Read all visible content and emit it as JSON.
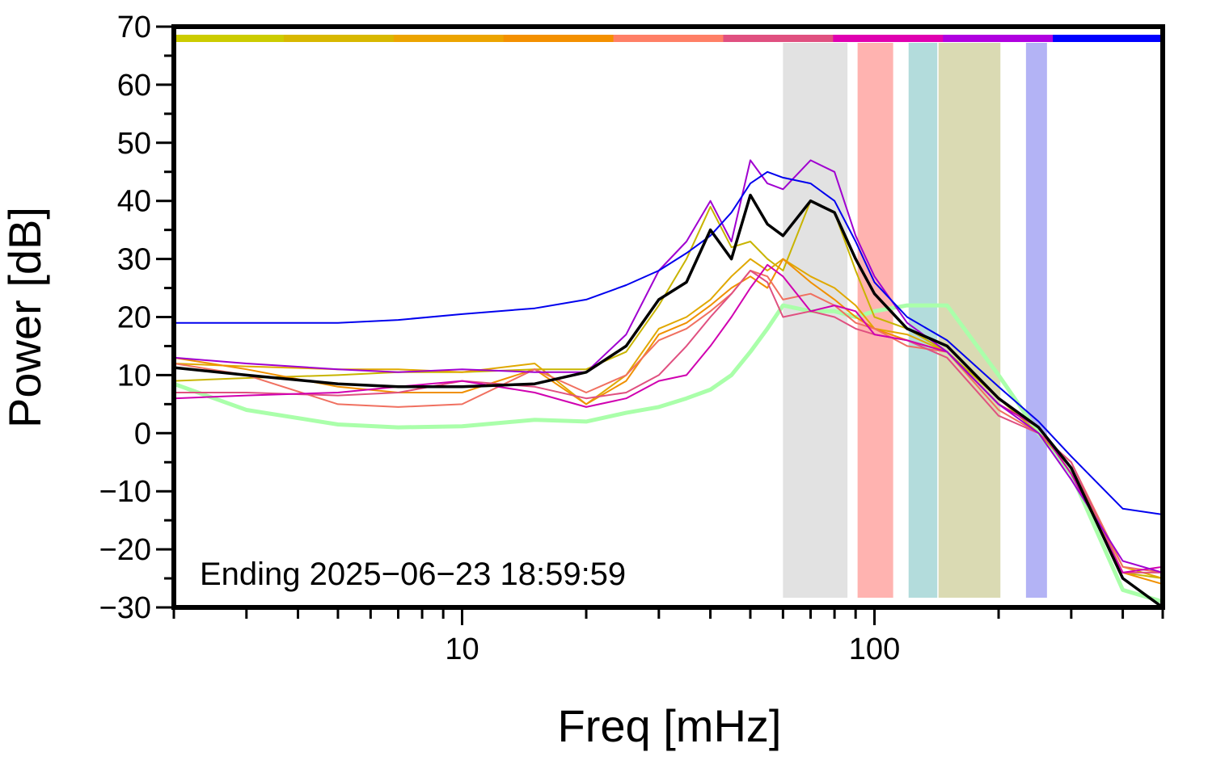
{
  "chart_data": {
    "type": "line",
    "xlabel": "Freq [mHz]",
    "ylabel": "Power [dB]",
    "annotation": "Ending 2025−06−23 18:59:59",
    "xscale": "log",
    "xlim": [
      2,
      500
    ],
    "ylim": [
      -30,
      70
    ],
    "xticks": [
      10,
      100
    ],
    "xticks_minor": [
      2,
      3,
      4,
      5,
      6,
      7,
      8,
      9,
      20,
      30,
      40,
      50,
      60,
      70,
      80,
      90,
      200,
      300,
      400,
      500
    ],
    "yticks": [
      {
        "value": -30,
        "label": "−30"
      },
      {
        "value": -20,
        "label": "−20"
      },
      {
        "value": -10,
        "label": "−10"
      },
      0,
      10,
      20,
      30,
      40,
      50,
      60,
      70
    ],
    "yticks_minor": [
      -25,
      -15,
      -5,
      5,
      15,
      25,
      35,
      45,
      55,
      65
    ],
    "color_strip": [
      "#cccc00",
      "#d8b800",
      "#eca400",
      "#f49000",
      "#ff7f66",
      "#e05080",
      "#e000b0",
      "#b000e0",
      "#0000ff"
    ],
    "bands": [
      {
        "x0": 60,
        "x1": 86,
        "color": "#e2e2e2"
      },
      {
        "x0": 91,
        "x1": 111,
        "color": "#ffb3b0"
      },
      {
        "x0": 121,
        "x1": 142,
        "color": "#b3dcdc"
      },
      {
        "x0": 143,
        "x1": 202,
        "color": "#dadab3"
      },
      {
        "x0": 233,
        "x1": 262,
        "color": "#b3b3f5"
      }
    ],
    "x": [
      2,
      3,
      5,
      7,
      10,
      15,
      20,
      25,
      30,
      35,
      40,
      45,
      50,
      55,
      60,
      70,
      80,
      90,
      100,
      120,
      150,
      200,
      250,
      300,
      400,
      500
    ],
    "series": [
      {
        "color": "#aaffaa",
        "width": 5,
        "values": [
          8.5,
          4,
          1.5,
          1,
          1.2,
          2.3,
          2,
          3.5,
          4.5,
          6,
          7.5,
          10,
          14,
          18,
          22,
          21,
          21,
          20,
          21,
          22,
          22,
          10,
          0,
          -7,
          -27,
          -29
        ]
      },
      {
        "color": "#c8b400",
        "width": 2,
        "values": [
          9,
          9.5,
          10,
          10.5,
          10.5,
          11,
          11,
          14,
          22,
          30,
          39,
          32,
          33,
          30,
          28,
          40,
          38,
          28,
          20,
          18,
          14,
          6,
          0,
          -6,
          -24,
          -25
        ]
      },
      {
        "color": "#e0a800",
        "width": 2,
        "values": [
          12,
          11.5,
          11,
          11,
          10.5,
          12,
          5,
          10,
          18,
          20,
          23,
          27,
          30,
          28,
          30,
          27,
          25,
          22,
          18,
          17,
          14,
          5,
          1,
          -6,
          -23,
          -25
        ]
      },
      {
        "color": "#f09000",
        "width": 2,
        "values": [
          13,
          11,
          8,
          7,
          7,
          11,
          5,
          9,
          17,
          19,
          22,
          25,
          27,
          25,
          30,
          26,
          23,
          20,
          18,
          16,
          14,
          5,
          1,
          -7,
          -24,
          -26
        ]
      },
      {
        "color": "#f07060",
        "width": 2,
        "values": [
          12,
          10,
          5,
          4.5,
          5,
          11,
          7,
          10,
          16,
          18,
          21,
          24,
          28,
          27,
          23,
          24,
          22,
          19,
          18,
          15,
          14,
          4,
          0,
          -5,
          -23,
          -24
        ]
      },
      {
        "color": "#e05080",
        "width": 2,
        "values": [
          7,
          7,
          6.5,
          7,
          9,
          8,
          6,
          7,
          10,
          15,
          20,
          24,
          28,
          26,
          20,
          21,
          20,
          18,
          17,
          16,
          13,
          3,
          0,
          -5,
          -24,
          -24
        ]
      },
      {
        "color": "#d000b0",
        "width": 2,
        "values": [
          6,
          6.5,
          7,
          8,
          9,
          7,
          4.5,
          6,
          9,
          10,
          15,
          20,
          25,
          29,
          27,
          21,
          22,
          21,
          17,
          16,
          14,
          5,
          1,
          -7,
          -24,
          -23
        ]
      },
      {
        "color": "#a000d0",
        "width": 2,
        "values": [
          13,
          12,
          11,
          10.5,
          11,
          10.5,
          10.5,
          17,
          28,
          33,
          40,
          33,
          47,
          43,
          42,
          47,
          45,
          34,
          27,
          19,
          14,
          5,
          0,
          -8,
          -22,
          -24
        ]
      },
      {
        "color": "#0000ee",
        "width": 2,
        "values": [
          19,
          19,
          19,
          19.5,
          20.5,
          21.5,
          23,
          25.5,
          28,
          31,
          34,
          38,
          43,
          45,
          44,
          43,
          40,
          33,
          26,
          20,
          16,
          8,
          2,
          -4,
          -13,
          -14
        ]
      },
      {
        "color": "#000000",
        "width": 3.5,
        "values": [
          11.3,
          10,
          8.5,
          8,
          8,
          8.5,
          10.5,
          15,
          23,
          26,
          35,
          30,
          41,
          36,
          34,
          40,
          38,
          30,
          24,
          18,
          15,
          6,
          1,
          -6,
          -25,
          -30
        ]
      }
    ]
  }
}
